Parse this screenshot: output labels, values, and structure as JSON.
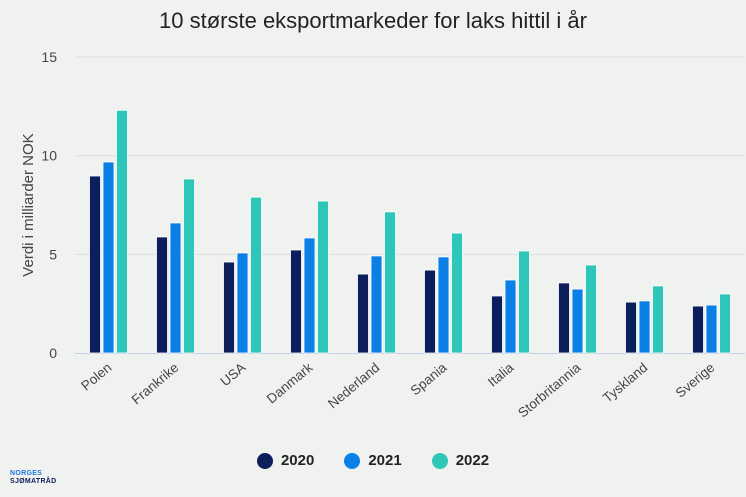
{
  "chart_data": {
    "type": "bar",
    "title": "10 største eksportmarkeder for laks hittil i år",
    "xlabel": "",
    "ylabel": "Verdi i milliarder NOK",
    "ylim": [
      0,
      15
    ],
    "yticks": [
      0,
      5,
      10,
      15
    ],
    "grid": true,
    "legend_position": "bottom",
    "categories": [
      "Polen",
      "Frankrike",
      "USA",
      "Danmark",
      "Nederland",
      "Spania",
      "Italia",
      "Storbritannia",
      "Tyskland",
      "Sverige"
    ],
    "series": [
      {
        "name": "2020",
        "color": "#0d1e5c",
        "values": [
          8.97,
          5.88,
          4.61,
          5.22,
          4.0,
          4.2,
          2.89,
          3.55,
          2.58,
          2.38
        ]
      },
      {
        "name": "2021",
        "color": "#0a80e6",
        "values": [
          9.68,
          6.59,
          5.07,
          5.83,
          4.92,
          4.87,
          3.7,
          3.24,
          2.64,
          2.43
        ]
      },
      {
        "name": "2022",
        "color": "#2ec6b8",
        "values": [
          12.3,
          8.82,
          7.9,
          7.7,
          7.15,
          6.08,
          5.17,
          4.46,
          3.4,
          2.99
        ]
      }
    ]
  },
  "logo": {
    "line1": "NORGES",
    "line2": "SJØMATRÅD"
  }
}
